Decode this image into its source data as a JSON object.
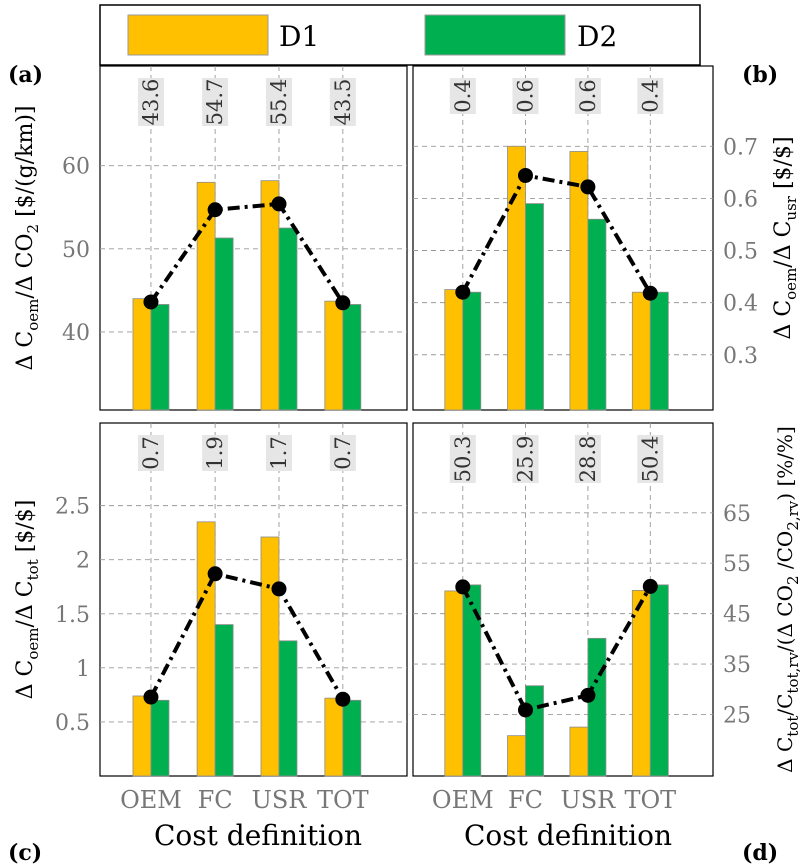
{
  "legend": {
    "entries": [
      {
        "name": "D1",
        "color": "#FFC000"
      },
      {
        "name": "D2",
        "color": "#00B050"
      }
    ]
  },
  "panel_labels": [
    "(a)",
    "(b)",
    "(c)",
    "(d)"
  ],
  "xlabel": "Cost definition",
  "colors": {
    "d1": "#FFC000",
    "d2": "#00B050",
    "line": "#000000",
    "label_box": "#E6E6E6",
    "grid": "#999999"
  },
  "chart_data": [
    {
      "panel": "(a)",
      "type": "bar",
      "categories": [
        "OEM",
        "FC",
        "USR",
        "TOT"
      ],
      "series": [
        {
          "name": "D1",
          "values": [
            44.0,
            58.0,
            58.2,
            43.7
          ]
        },
        {
          "name": "D2",
          "values": [
            43.3,
            51.3,
            52.5,
            43.3
          ]
        }
      ],
      "line_values": [
        43.6,
        54.7,
        55.4,
        43.5
      ],
      "data_labels": [
        "43.6",
        "54.7",
        "55.4",
        "43.5"
      ],
      "ylabel_main": "Δ C",
      "ylabel_parts": [
        [
          "Δ C",
          ""
        ],
        [
          "oem",
          "sub"
        ],
        [
          "/Δ CO",
          ""
        ],
        [
          "2",
          "sub"
        ],
        [
          " [$/(g/km)]",
          ""
        ]
      ],
      "yticks": [
        40,
        50,
        60
      ],
      "ylim": [
        30.6,
        72
      ],
      "yaxis_side": "left",
      "grid": true
    },
    {
      "panel": "(b)",
      "type": "bar",
      "categories": [
        "OEM",
        "FC",
        "USR",
        "TOT"
      ],
      "series": [
        {
          "name": "D1",
          "values": [
            0.425,
            0.7,
            0.69,
            0.42
          ]
        },
        {
          "name": "D2",
          "values": [
            0.42,
            0.59,
            0.56,
            0.42
          ]
        }
      ],
      "line_values": [
        0.42,
        0.644,
        0.622,
        0.418
      ],
      "data_labels": [
        "0.4",
        "0.6",
        "0.6",
        "0.4"
      ],
      "ylabel_parts": [
        [
          "Δ C",
          ""
        ],
        [
          "oem",
          "sub"
        ],
        [
          "/Δ C",
          ""
        ],
        [
          "usr",
          "sub"
        ],
        [
          " [$/$]",
          ""
        ]
      ],
      "yticks": [
        0.3,
        0.4,
        0.5,
        0.6,
        0.7
      ],
      "ylim": [
        0.194,
        0.854
      ],
      "yaxis_side": "right",
      "grid": true
    },
    {
      "panel": "(c)",
      "type": "bar",
      "categories": [
        "OEM",
        "FC",
        "USR",
        "TOT"
      ],
      "series": [
        {
          "name": "D1",
          "values": [
            0.74,
            2.35,
            2.21,
            0.72
          ]
        },
        {
          "name": "D2",
          "values": [
            0.7,
            1.4,
            1.25,
            0.7
          ]
        }
      ],
      "line_values": [
        0.73,
        1.87,
        1.73,
        0.71
      ],
      "data_labels": [
        "0.7",
        "1.9",
        "1.7",
        "0.7"
      ],
      "ylabel_parts": [
        [
          "Δ C",
          ""
        ],
        [
          "oem",
          "sub"
        ],
        [
          "/Δ C",
          ""
        ],
        [
          "tot",
          "sub"
        ],
        [
          " [$/$]",
          ""
        ]
      ],
      "yticks": [
        0.5,
        1,
        1.5,
        2,
        2.5
      ],
      "yticklabels": [
        "0.5",
        "1",
        "1.5",
        "2",
        "2.5"
      ],
      "ylim": [
        0,
        3.264
      ],
      "yaxis_side": "left",
      "grid": true
    },
    {
      "panel": "(d)",
      "type": "bar",
      "categories": [
        "OEM",
        "FC",
        "USR",
        "TOT"
      ],
      "series": [
        {
          "name": "D1",
          "values": [
            49.5,
            20.8,
            22.5,
            49.6
          ]
        },
        {
          "name": "D2",
          "values": [
            50.7,
            30.7,
            40.1,
            50.7
          ]
        }
      ],
      "line_values": [
        50.3,
        25.9,
        28.8,
        50.4
      ],
      "data_labels": [
        "50.3",
        "25.9",
        "28.8",
        "50.4"
      ],
      "ylabel_parts": [
        [
          "Δ C",
          ""
        ],
        [
          "tot",
          "sub"
        ],
        [
          "/C",
          ""
        ],
        [
          "tot,rv",
          "sub"
        ],
        [
          "/(Δ CO",
          ""
        ],
        [
          "2",
          "sub"
        ],
        [
          " /CO",
          ""
        ],
        [
          "2,rv",
          "sub"
        ],
        [
          ") [%/%]",
          ""
        ]
      ],
      "yticks": [
        25,
        35,
        45,
        55,
        65
      ],
      "ylim": [
        12.8,
        82.8
      ],
      "yaxis_side": "right",
      "grid": true
    }
  ]
}
